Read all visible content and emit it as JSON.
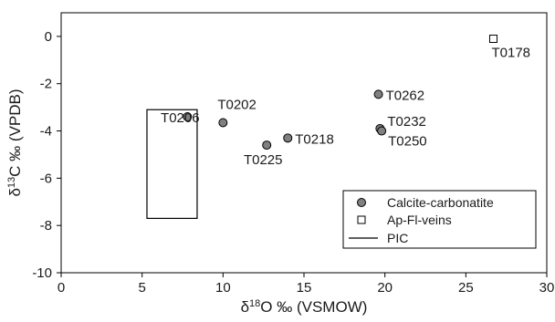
{
  "chart_data": {
    "type": "scatter",
    "xlabel_parts": [
      "δ",
      "18",
      "O ‰ (VSMOW)"
    ],
    "ylabel_parts": [
      "δ",
      "13",
      "C ‰ (VPDB)"
    ],
    "xlim": [
      0,
      30
    ],
    "ylim": [
      -10,
      1
    ],
    "xticks": [
      0,
      5,
      10,
      15,
      20,
      25,
      30
    ],
    "yticks": [
      0,
      -2,
      -4,
      -6,
      -8,
      -10
    ],
    "series": [
      {
        "name": "Calcite-carbonatite",
        "marker": "circle",
        "color": "#808080",
        "points": [
          {
            "label": "T0206",
            "x": 7.8,
            "y": -3.4
          },
          {
            "label": "T0202",
            "x": 10.0,
            "y": -3.65
          },
          {
            "label": "T0225",
            "x": 12.7,
            "y": -4.6
          },
          {
            "label": "T0218",
            "x": 14.0,
            "y": -4.3
          },
          {
            "label": "T0262",
            "x": 19.6,
            "y": -2.45
          },
          {
            "label": "T0232",
            "x": 19.7,
            "y": -3.9
          },
          {
            "label": "T0250",
            "x": 19.8,
            "y": -4.0
          }
        ]
      },
      {
        "name": "Ap-Fl-veins",
        "marker": "square",
        "color": "#ffffff",
        "points": [
          {
            "label": "T0178",
            "x": 26.7,
            "y": -0.1
          }
        ]
      }
    ],
    "regions": [
      {
        "name": "PIC",
        "type": "rectangle",
        "x": [
          5.3,
          8.4
        ],
        "y": [
          -7.7,
          -3.1
        ]
      }
    ],
    "legend": {
      "position": "bottom-right",
      "entries": [
        "Calcite-carbonatite",
        "Ap-Fl-veins",
        "PIC"
      ]
    },
    "grid": false
  }
}
